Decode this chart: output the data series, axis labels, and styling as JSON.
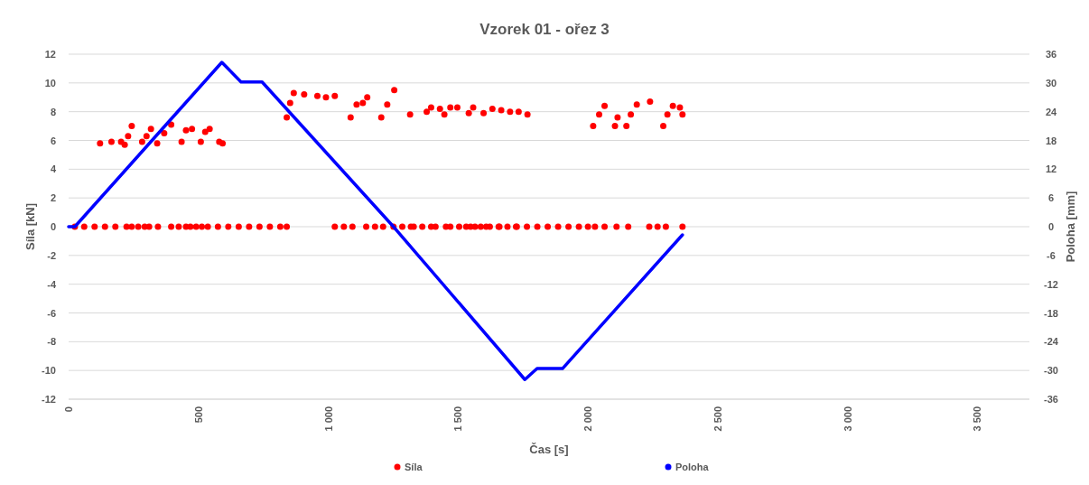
{
  "chart_data": {
    "type": "scatter",
    "title": "Vzorek 01 - ořez 3",
    "xlabel": "Čas [s]",
    "ylabel": "Síla [kN]",
    "y2label": "Poloha [mm]",
    "xlim": [
      0,
      3700
    ],
    "xticks": [
      0,
      500,
      {
        "value": 1000,
        "label": "1 000"
      },
      {
        "value": 1500,
        "label": "1 500"
      },
      {
        "value": 2000,
        "label": "2 000"
      },
      {
        "value": 2500,
        "label": "2 500"
      },
      {
        "value": 3000,
        "label": "3 000"
      },
      {
        "value": 3500,
        "label": "3 500"
      }
    ],
    "ylim": [
      -12,
      12
    ],
    "yticks": [
      -12,
      -10,
      -8,
      -6,
      -4,
      -2,
      0,
      2,
      4,
      6,
      8,
      10,
      12
    ],
    "y2lim": [
      -36,
      36
    ],
    "y2ticks": [
      -36,
      -30,
      -24,
      -18,
      -12,
      -6,
      0,
      6,
      12,
      18,
      24,
      30,
      36
    ],
    "grid": "y",
    "legend": "bottom",
    "marker": "circle",
    "series": [
      {
        "name": "Síla",
        "color": "#ff0000",
        "x": [
          121,
          165,
          202,
          216,
          229,
          243,
          283,
          300,
          317,
          341,
          368,
          395,
          435,
          452,
          475,
          509,
          526,
          543,
          580,
          593,
          840,
          853,
          867,
          907,
          958,
          991,
          1025,
          1086,
          1109,
          1133,
          1150,
          1204,
          1227,
          1254,
          1315,
          1379,
          1396,
          1430,
          1447,
          1470,
          1497,
          1541,
          1558,
          1598,
          1632,
          1666,
          1700,
          1733,
          1767,
          2020,
          2043,
          2064,
          2104,
          2114,
          2148,
          2165,
          2188,
          2239,
          2290,
          2306,
          2327,
          2354,
          2364,
          24,
          60,
          100,
          140,
          180,
          223,
          243,
          268,
          293,
          310,
          344,
          395,
          424,
          452,
          469,
          491,
          513,
          536,
          575,
          615,
          655,
          695,
          735,
          775,
          815,
          840,
          1025,
          1060,
          1093,
          1146,
          1180,
          1211,
          1251,
          1285,
          1318,
          1329,
          1362,
          1396,
          1413,
          1453,
          1470,
          1504,
          1531,
          1548,
          1565,
          1587,
          1608,
          1622,
          1656,
          1659,
          1690,
          1723,
          1726,
          1765,
          1805,
          1845,
          1885,
          1925,
          1965,
          2000,
          2027,
          2064,
          2110,
          2155,
          2236,
          2268,
          2300,
          2364
        ],
        "values": [
          5.8,
          5.9,
          5.9,
          5.7,
          6.3,
          7,
          5.9,
          6.3,
          6.8,
          5.8,
          6.5,
          7.1,
          5.9,
          6.7,
          6.8,
          5.9,
          6.6,
          6.8,
          5.9,
          5.8,
          7.6,
          8.6,
          9.3,
          9.2,
          9.1,
          9,
          9.1,
          7.6,
          8.5,
          8.6,
          9,
          7.6,
          8.5,
          9.5,
          7.8,
          8,
          8.3,
          8.2,
          7.8,
          8.3,
          8.3,
          7.9,
          8.3,
          7.9,
          8.2,
          8.1,
          8,
          8,
          7.8,
          7,
          7.8,
          8.4,
          7,
          7.6,
          7,
          7.8,
          8.5,
          8.7,
          7,
          7.8,
          8.4,
          8.3,
          7.8,
          0,
          0,
          0,
          0,
          0,
          0,
          0,
          0,
          0,
          0,
          0,
          0,
          0,
          0,
          0,
          0,
          0,
          0,
          0,
          0,
          0,
          0,
          0,
          0,
          0,
          0,
          0,
          0,
          0,
          0,
          0,
          0,
          0,
          0,
          0,
          0,
          0,
          0,
          0,
          0,
          0,
          0,
          0,
          0,
          0,
          0,
          0,
          0,
          0,
          0,
          0,
          0,
          0,
          0,
          0,
          0,
          0,
          0,
          0,
          0,
          0,
          0,
          0,
          0,
          0,
          0,
          0,
          0
        ]
      },
      {
        "name": "Poloha",
        "type": "line",
        "marker": "none",
        "axis": "y2",
        "color": "#0000ff",
        "x": [
          0,
          24,
          590,
          664,
          745,
          1251,
          1757,
          1804,
          1902,
          2364
        ],
        "values": [
          0,
          0,
          34.3,
          30.2,
          30.2,
          0,
          -31.9,
          -29.6,
          -29.6,
          -1.7
        ]
      }
    ]
  }
}
